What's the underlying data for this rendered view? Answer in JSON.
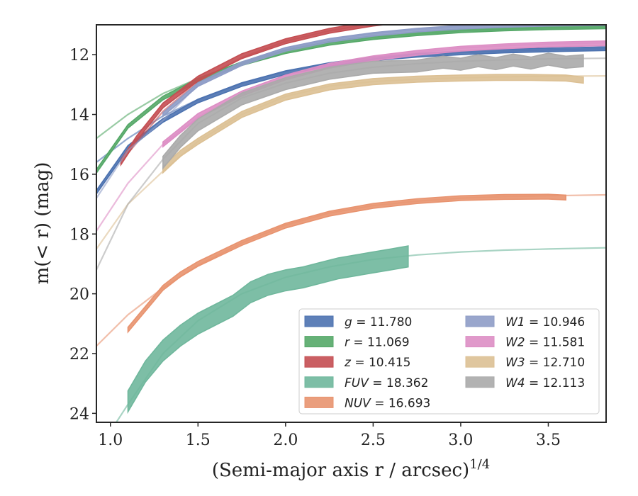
{
  "chart_data": {
    "type": "line",
    "title": "",
    "xlabel": "(Semi-major axis r / arcsec)",
    "xlabel_exponent": "1/4",
    "ylabel": "m(< r) (mag)",
    "xlim": [
      0.92,
      3.83
    ],
    "ylim": [
      24.3,
      11.0
    ],
    "y_inverted": true,
    "xticks": [
      1.0,
      1.5,
      2.0,
      2.5,
      3.0,
      3.5
    ],
    "xtick_labels": [
      "1.0",
      "1.5",
      "2.0",
      "2.5",
      "3.0",
      "3.5"
    ],
    "yticks": [
      12,
      14,
      16,
      18,
      20,
      22,
      24
    ],
    "ytick_labels": [
      "12",
      "14",
      "16",
      "18",
      "20",
      "22",
      "24"
    ],
    "grid": false,
    "legend_placement": "lower-right",
    "legend_columns": 2,
    "series": [
      {
        "name": "g = 11.780",
        "color": "#4c72b0",
        "model": {
          "x": [
            0.92,
            1.1,
            1.3,
            1.5,
            1.75,
            2.0,
            2.25,
            2.5,
            2.75,
            3.0,
            3.25,
            3.5,
            3.83
          ],
          "y": [
            15.6,
            14.8,
            14.05,
            13.5,
            12.95,
            12.55,
            12.3,
            12.12,
            12.0,
            11.93,
            11.88,
            11.84,
            11.8
          ]
        },
        "data": {
          "x": [
            0.92,
            1.1,
            1.3,
            1.5,
            1.75,
            2.0,
            2.25,
            2.5,
            2.75,
            3.0,
            3.25,
            3.5,
            3.83
          ],
          "y": [
            16.6,
            15.1,
            14.2,
            13.55,
            13.0,
            12.6,
            12.33,
            12.14,
            12.02,
            11.94,
            11.88,
            11.84,
            11.8
          ],
          "band": 0.06
        }
      },
      {
        "name": "r = 11.069",
        "color": "#55a868",
        "model": {
          "x": [
            0.92,
            1.1,
            1.3,
            1.5,
            1.75,
            2.0,
            2.25,
            2.5,
            2.75,
            3.0,
            3.25,
            3.5,
            3.83
          ],
          "y": [
            14.8,
            14.0,
            13.3,
            12.8,
            12.25,
            11.85,
            11.6,
            11.42,
            11.3,
            11.2,
            11.14,
            11.1,
            11.07
          ]
        },
        "data": {
          "x": [
            0.92,
            1.1,
            1.3,
            1.5,
            1.75,
            2.0,
            2.25,
            2.5,
            2.75,
            3.0,
            3.25,
            3.5,
            3.83
          ],
          "y": [
            15.9,
            14.4,
            13.45,
            12.85,
            12.3,
            11.9,
            11.62,
            11.43,
            11.3,
            11.2,
            11.14,
            11.1,
            11.07
          ],
          "band": 0.06
        }
      },
      {
        "name": "z = 10.415",
        "color": "#c44e52",
        "model": {
          "x": [
            1.1,
            1.3,
            1.5,
            1.75,
            2.0,
            2.25,
            2.5,
            2.75,
            3.0,
            3.25,
            3.5,
            3.83
          ],
          "y": [
            15.3,
            13.9,
            12.9,
            12.1,
            11.55,
            11.2,
            10.95,
            10.78,
            10.66,
            10.58,
            10.52,
            10.47
          ]
        },
        "data": {
          "x": [
            1.06,
            1.15,
            1.3,
            1.5,
            1.75,
            2.0,
            2.25,
            2.5,
            2.75,
            3.0,
            3.25,
            3.5,
            3.83
          ],
          "y": [
            15.6,
            14.8,
            13.7,
            12.8,
            12.05,
            11.55,
            11.2,
            10.96,
            10.8,
            10.7,
            10.64,
            10.6,
            10.58
          ],
          "band": 0.08
        }
      },
      {
        "name": "FUV = 18.362",
        "color": "#6fb79c",
        "model": {
          "x": [
            0.92,
            1.0,
            1.1,
            1.3,
            1.5,
            1.75,
            2.0,
            2.25,
            2.5,
            2.75,
            3.0,
            3.25,
            3.5,
            3.83
          ],
          "y": [
            25.2,
            24.6,
            23.7,
            22.0,
            20.9,
            20.0,
            19.45,
            19.1,
            18.85,
            18.7,
            18.6,
            18.54,
            18.5,
            18.46
          ]
        },
        "data": {
          "x": [
            1.1,
            1.2,
            1.3,
            1.4,
            1.5,
            1.6,
            1.7,
            1.8,
            1.9,
            2.0,
            2.1,
            2.2,
            2.3,
            2.4,
            2.5,
            2.6,
            2.7
          ],
          "y": [
            23.6,
            22.6,
            21.9,
            21.4,
            21.0,
            20.7,
            20.4,
            19.95,
            19.7,
            19.55,
            19.45,
            19.3,
            19.15,
            19.05,
            18.95,
            18.85,
            18.75
          ],
          "band": 0.35
        }
      },
      {
        "name": "NUV = 16.693",
        "color": "#e8936f",
        "model": {
          "x": [
            0.92,
            1.1,
            1.3,
            1.5,
            1.75,
            2.0,
            2.25,
            2.5,
            2.75,
            3.0,
            3.25,
            3.5,
            3.83
          ],
          "y": [
            21.75,
            20.7,
            19.8,
            19.05,
            18.3,
            17.7,
            17.3,
            17.05,
            16.9,
            16.8,
            16.75,
            16.72,
            16.69
          ]
        },
        "data": {
          "x": [
            1.1,
            1.2,
            1.3,
            1.4,
            1.5,
            1.75,
            2.0,
            2.25,
            2.5,
            2.75,
            3.0,
            3.25,
            3.5,
            3.6
          ],
          "y": [
            21.2,
            20.5,
            19.8,
            19.35,
            19.0,
            18.3,
            17.72,
            17.32,
            17.06,
            16.9,
            16.8,
            16.76,
            16.75,
            16.78
          ],
          "band": 0.08
        }
      },
      {
        "name": "W1 = 10.946",
        "color": "#8e9cc6",
        "model": {
          "x": [
            0.92,
            1.1,
            1.3,
            1.5,
            1.75,
            2.0,
            2.25,
            2.5,
            2.75,
            3.0,
            3.25,
            3.5,
            3.83
          ],
          "y": [
            16.8,
            15.2,
            14.2,
            13.0,
            12.3,
            11.8,
            11.5,
            11.3,
            11.16,
            11.07,
            11.0,
            10.97,
            10.95
          ]
        },
        "data": {
          "x": [
            1.3,
            1.5,
            1.75,
            2.0,
            2.25,
            2.5,
            2.75,
            3.0,
            3.25,
            3.5,
            3.83
          ],
          "y": [
            14.0,
            13.0,
            12.3,
            11.82,
            11.52,
            11.32,
            11.18,
            11.08,
            11.02,
            10.98,
            10.96
          ],
          "band": 0.06
        }
      },
      {
        "name": "W2 = 11.581",
        "color": "#dd8ec4",
        "model": {
          "x": [
            0.92,
            1.1,
            1.3,
            1.5,
            1.75,
            2.0,
            2.25,
            2.5,
            2.75,
            3.0,
            3.25,
            3.5,
            3.83
          ],
          "y": [
            17.9,
            16.3,
            15.0,
            14.1,
            13.3,
            12.75,
            12.35,
            12.1,
            11.92,
            11.78,
            11.7,
            11.64,
            11.6
          ]
        },
        "data": {
          "x": [
            1.3,
            1.5,
            1.75,
            2.0,
            2.25,
            2.5,
            2.75,
            3.0,
            3.25,
            3.5,
            3.83
          ],
          "y": [
            15.0,
            14.05,
            13.3,
            12.76,
            12.37,
            12.12,
            11.94,
            11.8,
            11.72,
            11.66,
            11.62
          ],
          "band": 0.08
        }
      },
      {
        "name": "W3 = 12.710",
        "color": "#dcc094",
        "model": {
          "x": [
            0.92,
            1.1,
            1.3,
            1.5,
            1.75,
            2.0,
            2.25,
            2.5,
            2.75,
            3.0,
            3.25,
            3.5,
            3.83
          ],
          "y": [
            18.5,
            17.0,
            15.9,
            14.9,
            14.0,
            13.4,
            13.05,
            12.9,
            12.82,
            12.77,
            12.74,
            12.72,
            12.71
          ]
        },
        "data": {
          "x": [
            1.3,
            1.4,
            1.5,
            1.75,
            2.0,
            2.25,
            2.5,
            2.75,
            3.0,
            3.2,
            3.4,
            3.6,
            3.7
          ],
          "y": [
            15.85,
            15.3,
            14.9,
            14.0,
            13.42,
            13.08,
            12.9,
            12.82,
            12.78,
            12.76,
            12.76,
            12.78,
            12.85
          ],
          "band": 0.1
        }
      },
      {
        "name": "W4 = 12.113",
        "color": "#aaaaaa",
        "model": {
          "x": [
            0.92,
            1.1,
            1.3,
            1.5,
            1.75,
            2.0,
            2.25,
            2.5,
            2.75,
            3.0,
            3.25,
            3.5,
            3.83
          ],
          "y": [
            19.2,
            17.0,
            15.5,
            14.3,
            13.45,
            12.95,
            12.62,
            12.42,
            12.3,
            12.22,
            12.17,
            12.14,
            12.12
          ]
        },
        "data": {
          "x": [
            1.3,
            1.4,
            1.5,
            1.75,
            2.0,
            2.25,
            2.5,
            2.75,
            2.9,
            3.0,
            3.1,
            3.2,
            3.3,
            3.4,
            3.5,
            3.6,
            3.7
          ],
          "y": [
            15.6,
            14.9,
            14.35,
            13.48,
            12.97,
            12.62,
            12.42,
            12.38,
            12.25,
            12.32,
            12.2,
            12.3,
            12.18,
            12.28,
            12.15,
            12.25,
            12.2
          ],
          "band": 0.2
        }
      }
    ]
  }
}
